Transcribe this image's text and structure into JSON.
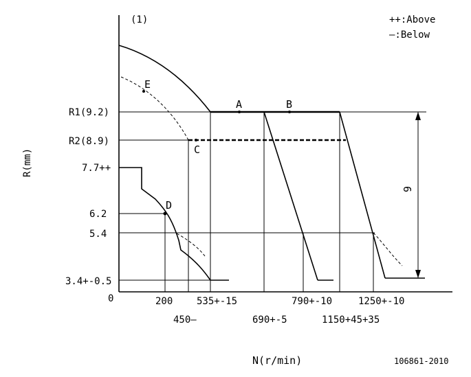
{
  "figure_label": "(1)",
  "legend": {
    "above": "++:Above",
    "below": "—:Below"
  },
  "y_axis_title": "R(mm)",
  "x_axis_title": "N(r/min)",
  "y_labels": {
    "r1": "R1(9.2)",
    "r2": "R2(8.9)",
    "v77": "7.7++",
    "v62": "6.2",
    "v54": "5.4",
    "v34": "3.4+-0.5",
    "zero": "0"
  },
  "x_labels": {
    "x200": "200",
    "x450": "450—",
    "x535": "535+-15",
    "x690": "690+-5",
    "x790": "790+-10",
    "x1150": "1150+45+35",
    "x1250": "1250+-10"
  },
  "points": {
    "A": "A",
    "B": "B",
    "C": "C",
    "D": "D",
    "E": "E"
  },
  "dimension": "9",
  "doc_number": "106861-2010"
}
